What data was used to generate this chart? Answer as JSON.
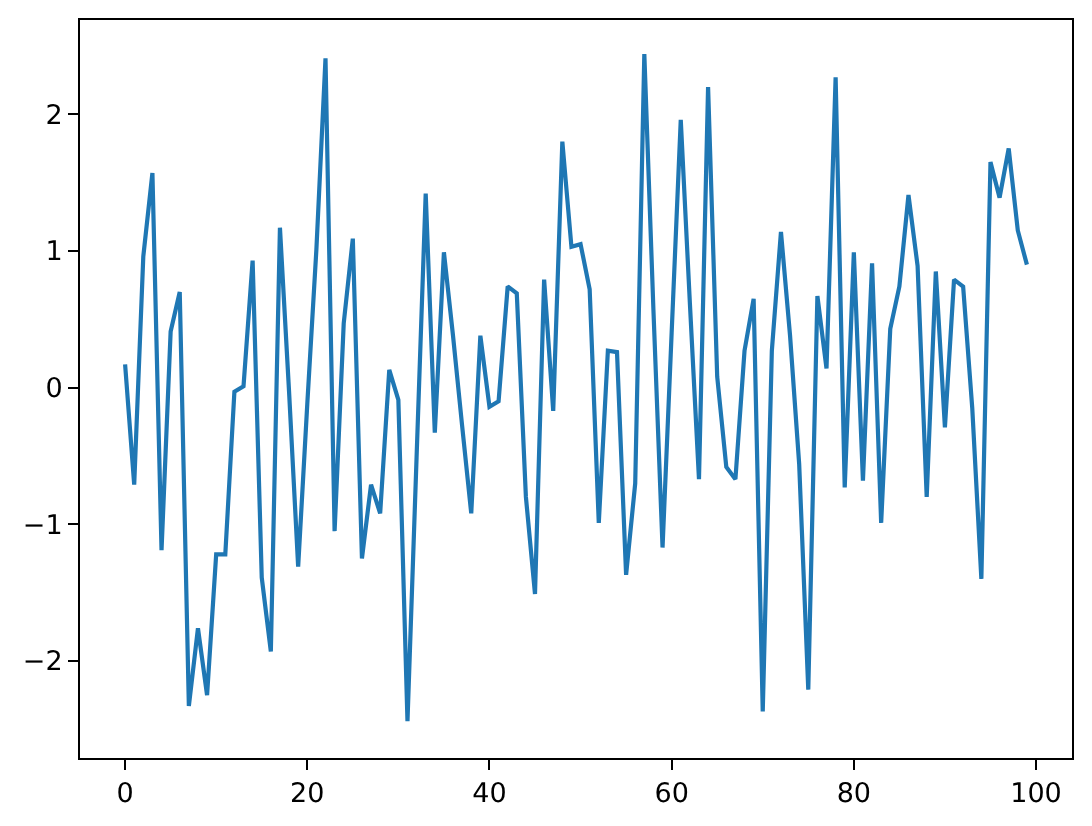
{
  "chart_data": {
    "type": "line",
    "color": "#1f77b4",
    "x": [
      0,
      1,
      2,
      3,
      4,
      5,
      6,
      7,
      8,
      9,
      10,
      11,
      12,
      13,
      14,
      15,
      16,
      17,
      18,
      19,
      20,
      21,
      22,
      23,
      24,
      25,
      26,
      27,
      28,
      29,
      30,
      31,
      32,
      33,
      34,
      35,
      36,
      37,
      38,
      39,
      40,
      41,
      42,
      43,
      44,
      45,
      46,
      47,
      48,
      49,
      50,
      51,
      52,
      53,
      54,
      55,
      56,
      57,
      58,
      59,
      60,
      61,
      62,
      63,
      64,
      65,
      66,
      67,
      68,
      69,
      70,
      71,
      72,
      73,
      74,
      75,
      76,
      77,
      78,
      79,
      80,
      81,
      82,
      83,
      84,
      85,
      86,
      87,
      88,
      89,
      90,
      91,
      92,
      93,
      94,
      95,
      96,
      97,
      98,
      99
    ],
    "values": [
      0.17,
      -0.71,
      0.96,
      1.57,
      -1.19,
      0.41,
      0.7,
      -2.33,
      -1.76,
      -2.25,
      -1.22,
      -1.22,
      -0.03,
      0.01,
      0.93,
      -1.39,
      -1.93,
      1.17,
      -0.03,
      -1.31,
      -0.12,
      1.01,
      2.41,
      -1.05,
      0.47,
      1.09,
      -1.25,
      -0.71,
      -0.92,
      0.13,
      -0.09,
      -2.44,
      -0.51,
      1.42,
      -0.33,
      0.99,
      0.38,
      -0.28,
      -0.92,
      0.38,
      -0.14,
      -0.1,
      0.74,
      0.69,
      -0.8,
      -1.51,
      0.79,
      -0.17,
      1.8,
      1.03,
      1.05,
      0.72,
      -0.99,
      0.27,
      0.26,
      -1.37,
      -0.7,
      2.44,
      0.57,
      -1.17,
      0.4,
      1.96,
      0.62,
      -0.67,
      2.2,
      0.08,
      -0.58,
      -0.67,
      0.27,
      0.65,
      -2.37,
      0.27,
      1.14,
      0.38,
      -0.56,
      -2.21,
      0.67,
      0.14,
      2.27,
      -0.73,
      0.99,
      -0.68,
      0.91,
      -0.99,
      0.43,
      0.74,
      1.41,
      0.89,
      -0.8,
      0.85,
      -0.29,
      0.79,
      0.74,
      -0.15,
      -1.4,
      1.65,
      1.39,
      1.75,
      1.15,
      0.9
    ],
    "xlim": [
      -4.95,
      103.95
    ],
    "xticks": [
      0,
      20,
      40,
      60,
      80,
      100
    ],
    "ylim": [
      -2.71,
      2.69
    ],
    "yticks": [
      -2,
      -1,
      0,
      1,
      2
    ]
  }
}
